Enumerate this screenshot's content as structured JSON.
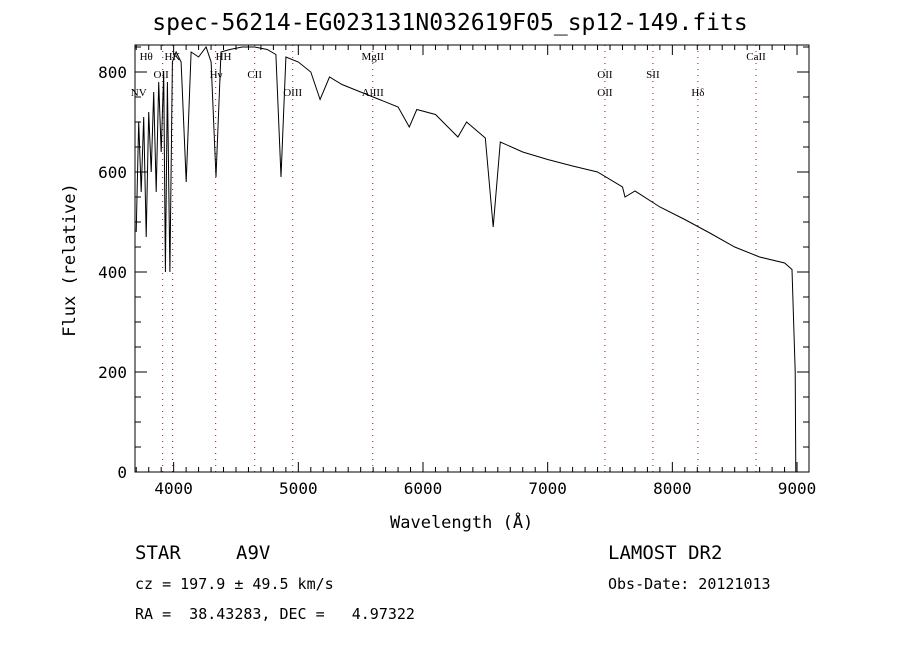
{
  "chart_data": {
    "type": "line",
    "title": "spec-56214-EG023131N032619F05_sp12-149.fits",
    "xlabel": "Wavelength (Å)",
    "ylabel": "Flux (relative)",
    "xlim": [
      3690,
      9096
    ],
    "ylim": [
      0,
      854
    ],
    "xticks": [
      4000,
      5000,
      6000,
      7000,
      8000,
      9000
    ],
    "yticks": [
      0,
      200,
      400,
      600,
      800
    ],
    "grid": false,
    "series": [
      {
        "name": "spectrum",
        "x": [
          3700,
          3720,
          3740,
          3760,
          3780,
          3800,
          3820,
          3840,
          3860,
          3880,
          3900,
          3920,
          3934,
          3950,
          3970,
          3990,
          4020,
          4060,
          4101,
          4140,
          4200,
          4260,
          4300,
          4340,
          4380,
          4450,
          4550,
          4650,
          4750,
          4820,
          4861,
          4900,
          5000,
          5100,
          5175,
          5250,
          5350,
          5450,
          5550,
          5650,
          5800,
          5890,
          5950,
          6100,
          6280,
          6350,
          6500,
          6563,
          6620,
          6800,
          7000,
          7200,
          7400,
          7600,
          7620,
          7700,
          7900,
          8100,
          8300,
          8500,
          8700,
          8900,
          8960,
          8985,
          8990
        ],
        "y": [
          480,
          700,
          560,
          710,
          470,
          720,
          600,
          760,
          560,
          780,
          640,
          800,
          400,
          780,
          400,
          820,
          840,
          820,
          580,
          840,
          830,
          850,
          820,
          590,
          840,
          845,
          850,
          850,
          845,
          835,
          590,
          830,
          820,
          800,
          745,
          790,
          775,
          765,
          755,
          745,
          730,
          690,
          725,
          715,
          670,
          700,
          668,
          490,
          660,
          640,
          625,
          612,
          600,
          570,
          550,
          562,
          530,
          505,
          478,
          450,
          430,
          418,
          405,
          200,
          0
        ]
      }
    ],
    "line_marks": [
      {
        "label": "NV",
        "wavelength": 3912,
        "row": 3,
        "label_at": 3720
      },
      {
        "label": "Hθ",
        "wavelength": 3992,
        "row": 1,
        "label_at": 3780
      },
      {
        "label": "OII",
        "wavelength": 3992,
        "row": 2,
        "label_at": 3900
      },
      {
        "label": "HK",
        "wavelength": 3992,
        "row": 1,
        "label_at": 3990
      },
      {
        "label": "Hγ",
        "wavelength": 4337,
        "row": 2,
        "label_at": 4340
      },
      {
        "label": "HH",
        "wavelength": 4337,
        "row": 1,
        "label_at": 4400
      },
      {
        "label": "CII",
        "wavelength": 4650,
        "row": 2,
        "label_at": 4650
      },
      {
        "label": "OIII",
        "wavelength": 4955,
        "row": 3,
        "label_at": 4955
      },
      {
        "label": "MgII",
        "wavelength": 5597,
        "row": 1,
        "label_at": 5597
      },
      {
        "label": "AlIII",
        "wavelength": 5597,
        "row": 3,
        "label_at": 5597
      },
      {
        "label": "OII",
        "wavelength": 7459,
        "row": 2,
        "label_at": 7459
      },
      {
        "label": "OII",
        "wavelength": 7459,
        "row": 3,
        "label_at": 7459
      },
      {
        "label": "SII",
        "wavelength": 7844,
        "row": 2,
        "label_at": 7844
      },
      {
        "label": "Hδ",
        "wavelength": 8205,
        "row": 3,
        "label_at": 8205
      },
      {
        "label": "CaII",
        "wavelength": 8671,
        "row": 1,
        "label_at": 8671
      }
    ]
  },
  "info": {
    "class": "STAR",
    "subclass": "A9V",
    "survey": "LAMOST DR2",
    "cz": "cz = 197.9 ± 49.5 km/s",
    "obs_date": "Obs-Date: 20121013",
    "coords": "RA =  38.43283, DEC =   4.97322"
  }
}
